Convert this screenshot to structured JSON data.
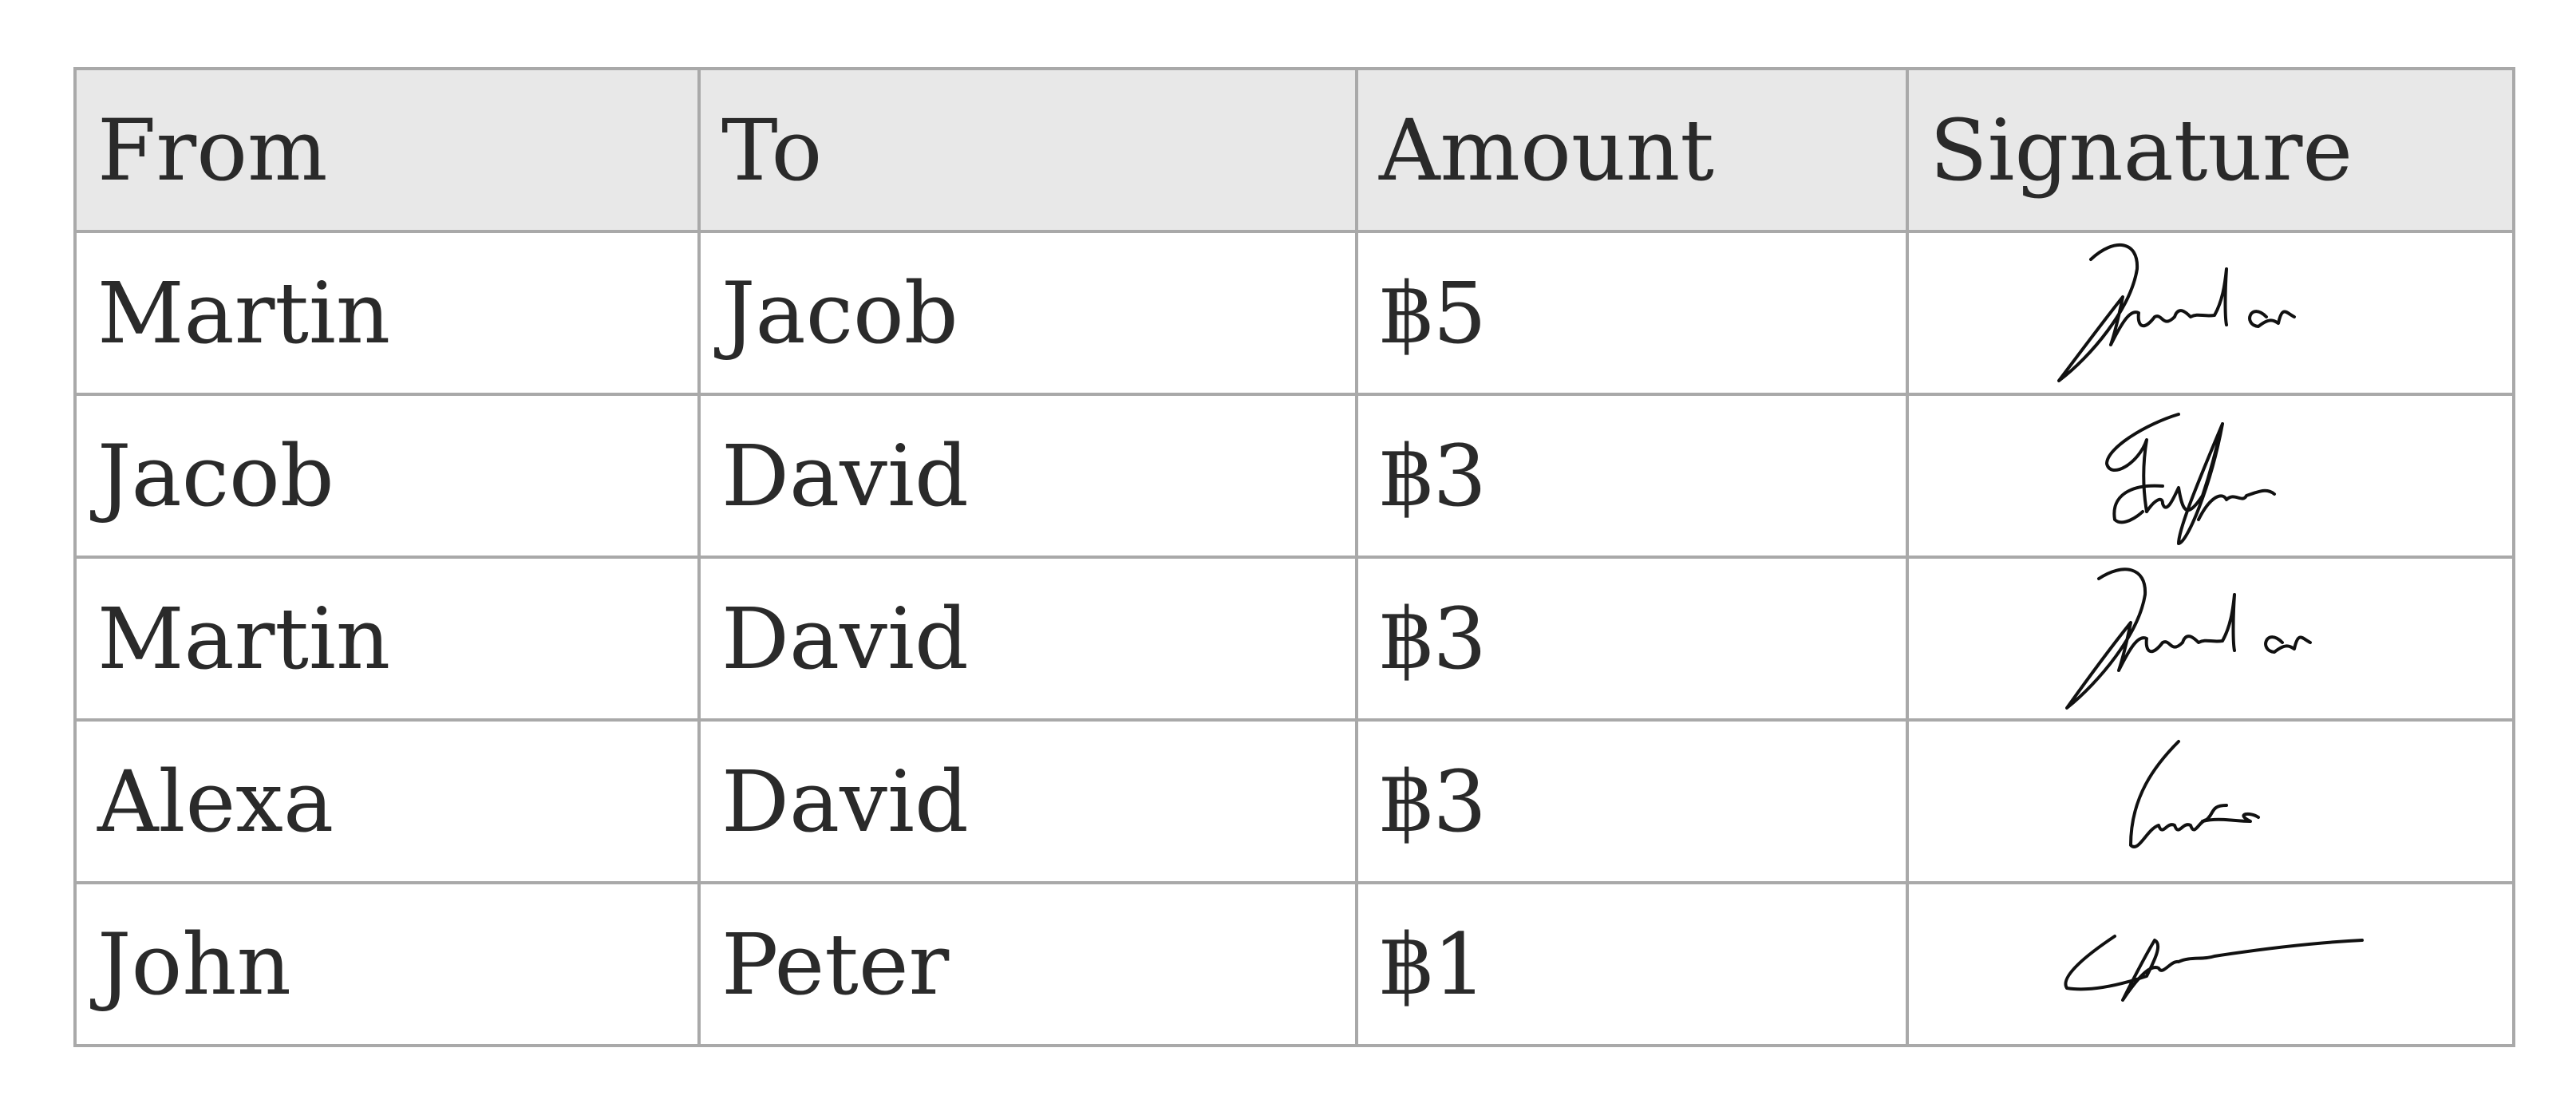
{
  "table": {
    "headers": [
      "From",
      "To",
      "Amount",
      "Signature"
    ],
    "rows": [
      {
        "from": "Martin",
        "to": "Jacob",
        "amount": "฿5",
        "signature": "Martin"
      },
      {
        "from": "Jacob",
        "to": "David",
        "amount": "฿3",
        "signature": "Jacob"
      },
      {
        "from": "Martin",
        "to": "David",
        "amount": "฿3",
        "signature": "Martin"
      },
      {
        "from": "Alexa",
        "to": "David",
        "amount": "฿3",
        "signature": "Alexa"
      },
      {
        "from": "John",
        "to": "Peter",
        "amount": "฿1",
        "signature": "John"
      }
    ]
  },
  "colors": {
    "header_bg": "#e8e8e8",
    "border": "#a9a9a9",
    "text": "#2a2a2a"
  }
}
